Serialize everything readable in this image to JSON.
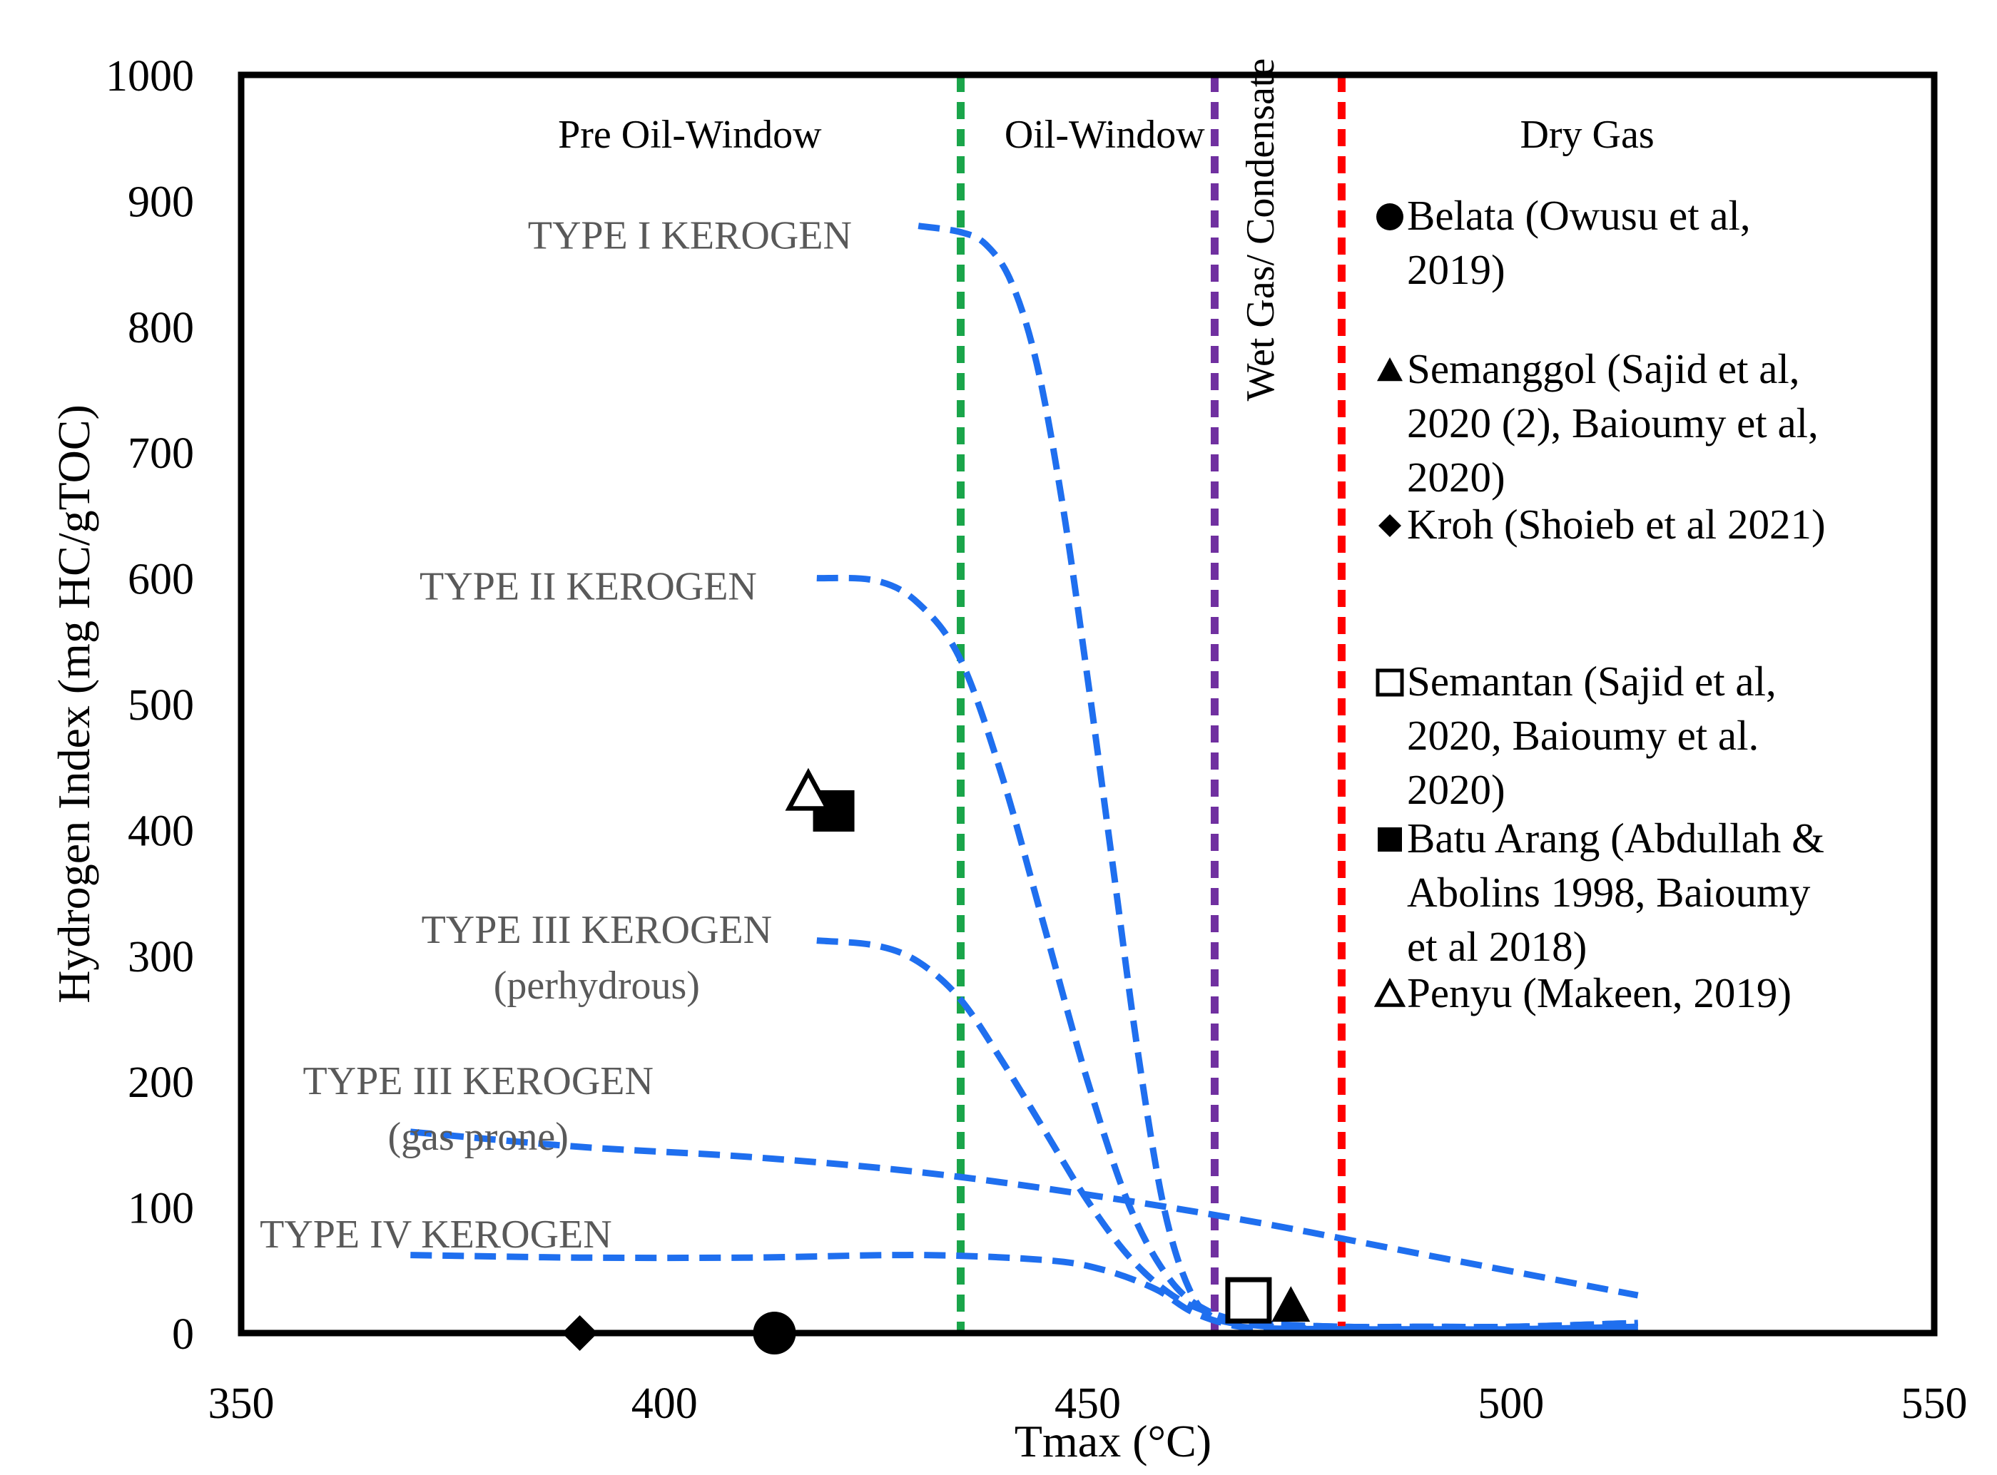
{
  "chart_data": {
    "type": "scatter",
    "xlabel": "Tmax (°C)",
    "ylabel": "Hydrogen Index (mg HC/gTOC)",
    "xlim": [
      350,
      550
    ],
    "ylim": [
      0,
      1000
    ],
    "x_ticks": [
      "350",
      "400",
      "450",
      "500",
      "550"
    ],
    "y_ticks": [
      "0",
      "100",
      "200",
      "300",
      "400",
      "500",
      "600",
      "700",
      "800",
      "900",
      "1000"
    ],
    "grid": false,
    "legend_position": "right",
    "zones": [
      {
        "label": "Pre Oil-Window",
        "x_center": 403
      },
      {
        "label": "Oil-Window",
        "x_center": 452
      },
      {
        "label": "Wet Gas/ Condensate",
        "x_center": 473
      },
      {
        "label": "Dry Gas",
        "x_center": 509
      }
    ],
    "boundaries": [
      {
        "x": 435,
        "color": "#1aa54a"
      },
      {
        "x": 465,
        "color": "#7030a0"
      },
      {
        "x": 480,
        "color": "#ff0000"
      }
    ],
    "curves": [
      {
        "name": "TYPE I KEROGEN",
        "label_lines": [
          "TYPE I KEROGEN"
        ],
        "label_x": 403,
        "label_y": 862,
        "x": [
          430,
          435,
          438,
          441,
          444,
          447,
          450,
          453,
          456,
          459,
          462,
          465,
          470,
          475,
          480,
          490,
          500,
          515
        ],
        "y": [
          880,
          875,
          865,
          835,
          770,
          660,
          520,
          370,
          220,
          100,
          35,
          12,
          6,
          4,
          3,
          3,
          3,
          5
        ]
      },
      {
        "name": "TYPE II KEROGEN",
        "label_lines": [
          "TYPE II KEROGEN"
        ],
        "label_x": 391,
        "label_y": 583,
        "x": [
          418,
          425,
          430,
          435,
          440,
          445,
          450,
          455,
          460,
          465,
          470,
          480,
          490,
          500,
          515
        ],
        "y": [
          600,
          598,
          580,
          535,
          440,
          320,
          200,
          100,
          40,
          15,
          8,
          5,
          5,
          5,
          8
        ]
      },
      {
        "name": "TYPE III KEROGEN (perhydrous)",
        "label_lines": [
          "TYPE III KEROGEN",
          "(perhydrous)"
        ],
        "label_x": 392,
        "label_y": 310,
        "x": [
          418,
          425,
          430,
          435,
          440,
          445,
          450,
          455,
          460,
          465,
          470,
          480,
          490,
          500,
          515
        ],
        "y": [
          312,
          308,
          295,
          265,
          215,
          160,
          105,
          60,
          30,
          15,
          8,
          5,
          5,
          5,
          8
        ]
      },
      {
        "name": "TYPE III KEROGEN (gas prone)",
        "label_lines": [
          "TYPE III KEROGEN",
          "(gas prone)"
        ],
        "label_x": 378,
        "label_y": 190,
        "x": [
          370,
          390,
          410,
          430,
          450,
          470,
          490,
          515
        ],
        "y": [
          160,
          148,
          140,
          128,
          110,
          88,
          62,
          30
        ]
      },
      {
        "name": "TYPE IV KEROGEN",
        "label_lines": [
          "TYPE IV KEROGEN"
        ],
        "label_x": 373,
        "label_y": 68,
        "x": [
          370,
          390,
          410,
          430,
          445,
          452,
          458,
          462,
          466,
          470,
          480,
          490,
          500,
          515
        ],
        "y": [
          62,
          60,
          60,
          62,
          58,
          50,
          35,
          18,
          8,
          4,
          3,
          3,
          3,
          5
        ]
      }
    ],
    "series": [
      {
        "name": "Belata (Owusu et al, 2019)",
        "marker": "circle",
        "filled": true,
        "label_lines": [
          "Belata (Owusu et al,",
          "2019)"
        ],
        "x": [
          413
        ],
        "y": [
          0
        ]
      },
      {
        "name": "Semanggol (Sajid et al, 2020 (2), Baioumy et al, 2020)",
        "marker": "triangle",
        "filled": true,
        "label_lines": [
          "Semanggol (Sajid et al,",
          "2020 (2), Baioumy et al,",
          "2020)"
        ],
        "x": [
          474
        ],
        "y": [
          22
        ]
      },
      {
        "name": "Kroh (Shoieb et al 2021)",
        "marker": "diamond",
        "filled": true,
        "label_lines": [
          "Kroh (Shoieb et al 2021)"
        ],
        "x": [
          390
        ],
        "y": [
          0
        ]
      },
      {
        "name": "Semantan (Sajid et al, 2020, Baioumy et al. 2020)",
        "marker": "square",
        "filled": false,
        "label_lines": [
          "Semantan (Sajid et al,",
          "2020, Baioumy et al.",
          "2020)"
        ],
        "x": [
          469
        ],
        "y": [
          26
        ]
      },
      {
        "name": "Batu Arang (Abdullah & Abolins 1998, Baioumy et al 2018)",
        "marker": "square",
        "filled": true,
        "label_lines": [
          "Batu Arang (Abdullah &",
          "Abolins 1998, Baioumy",
          "et al 2018)"
        ],
        "x": [
          420
        ],
        "y": [
          415
        ]
      },
      {
        "name": "Penyu (Makeen, 2019)",
        "marker": "triangle",
        "filled": false,
        "label_lines": [
          "Penyu (Makeen, 2019)"
        ],
        "x": [
          417
        ],
        "y": [
          430
        ]
      }
    ],
    "colors": {
      "curve": "#1f6fef",
      "axis": "#000000",
      "label": "#595959"
    }
  }
}
